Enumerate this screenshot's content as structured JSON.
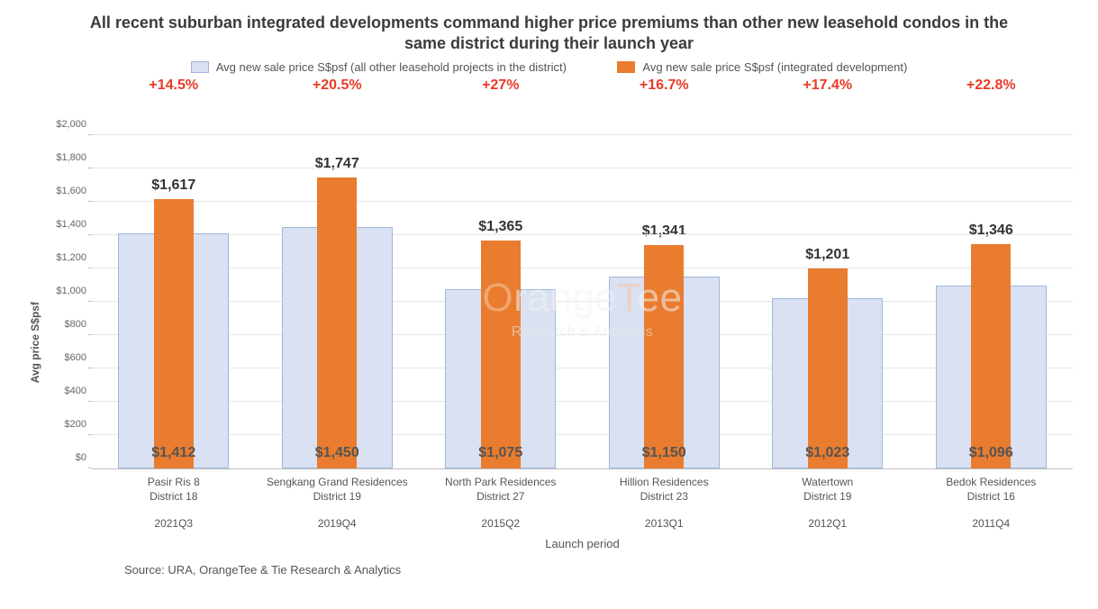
{
  "title": "All recent suburban integrated developments command higher price premiums than other new leasehold condos in the same district during their launch year",
  "title_fontsize": 18,
  "legend": {
    "items": [
      {
        "label": "Avg new sale price S$psf (all other leasehold projects in the district)",
        "color": "#d9e1f2",
        "border": "#9fb7dd"
      },
      {
        "label": "Avg new sale price S$psf (integrated development)",
        "color": "#e97c2f",
        "border": "#e97c2f"
      }
    ],
    "fontsize": 13
  },
  "chart": {
    "type": "bar",
    "background_color": "#ffffff",
    "gridline_color": "#e6e6e6",
    "axis_color": "#bfbfbf",
    "y_label": "Avg price S$psf",
    "y_label_fontsize": 12,
    "x_label": "Launch period",
    "x_label_fontsize": 13,
    "ylim": [
      0,
      2000
    ],
    "ytick_step": 200,
    "ytick_prefix": "$",
    "ytick_format_thousands": true,
    "ytick_fontsize": 11,
    "categories": [
      {
        "line1": "Pasir Ris 8",
        "line2": "District 18",
        "period": "2021Q3"
      },
      {
        "line1": "Sengkang Grand Residences",
        "line2": "District 19",
        "period": "2019Q4"
      },
      {
        "line1": "North Park Residences",
        "line2": "District 27",
        "period": "2015Q2"
      },
      {
        "line1": "Hillion Residences",
        "line2": "District 23",
        "period": "2013Q1"
      },
      {
        "line1": "Watertown",
        "line2": "District 19",
        "period": "2012Q1"
      },
      {
        "line1": "Bedok Residences",
        "line2": "District 16",
        "period": "2011Q4"
      }
    ],
    "series_back": {
      "name": "Avg new sale price S$psf (all other leasehold projects in the district)",
      "color": "#d9e1f2",
      "border_color": "#9fb7dd",
      "values": [
        1412,
        1450,
        1075,
        1150,
        1023,
        1096
      ],
      "labels": [
        "$1,412",
        "$1,450",
        "$1,075",
        "$1,150",
        "$1,023",
        "$1,096"
      ]
    },
    "series_front": {
      "name": "Avg new sale price S$psf (integrated development)",
      "color": "#e97c2f",
      "values": [
        1617,
        1747,
        1365,
        1341,
        1201,
        1346
      ],
      "labels": [
        "$1,617",
        "$1,747",
        "$1,365",
        "$1,341",
        "$1,201",
        "$1,346"
      ]
    },
    "premiums": [
      "+14.5%",
      "+20.5%",
      "+27%",
      "+16.7%",
      "+17.4%",
      "+22.8%"
    ],
    "premium_color": "#e83b28",
    "premium_fontsize": 16,
    "value_label_fontsize": 16,
    "xtick_fontsize": 12
  },
  "watermark": {
    "line1_prefix": "O",
    "line1_mid": "range",
    "line1_t": "T",
    "line1_suffix": "ee",
    "line2": "Research & Analytics",
    "opacity": 0.55
  },
  "source": "Source: URA, OrangeTee & Tie Research & Analytics"
}
